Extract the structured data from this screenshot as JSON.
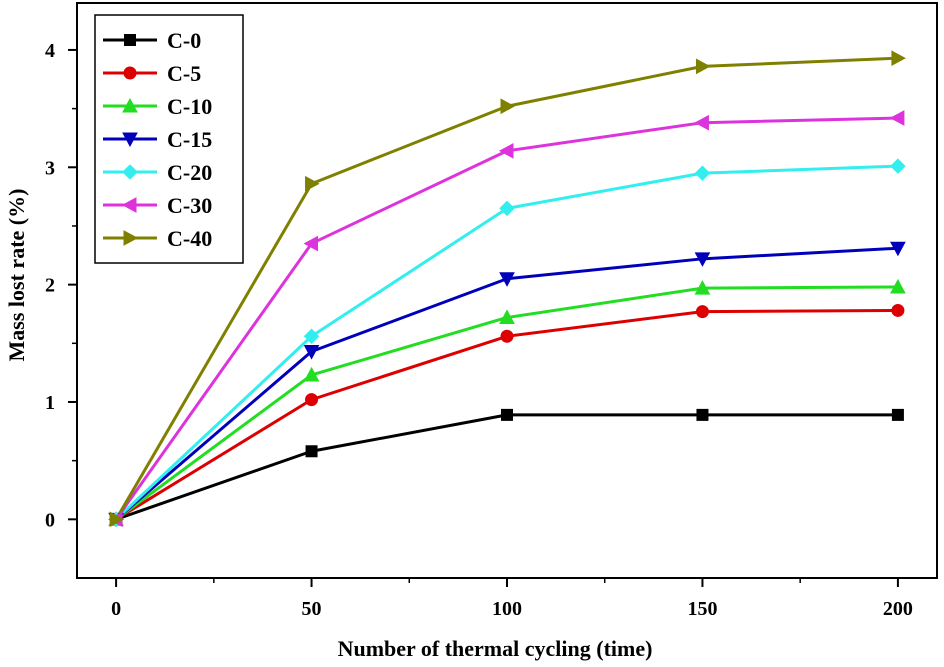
{
  "chart_data": {
    "type": "line",
    "title": "",
    "xlabel": "Number of thermal cycling (time)",
    "ylabel": "Mass lost rate (%)",
    "x": [
      0,
      50,
      100,
      150,
      200
    ],
    "xlim": [
      -10,
      210
    ],
    "ylim": [
      -0.5,
      4.4
    ],
    "xticks": [
      0,
      50,
      100,
      150,
      200
    ],
    "yticks": [
      0,
      1,
      2,
      3,
      4
    ],
    "grid": false,
    "legend_position": "top-left",
    "series": [
      {
        "name": "C-0",
        "color": "#000000",
        "marker": "square",
        "values": [
          0,
          0.58,
          0.89,
          0.89,
          0.89
        ]
      },
      {
        "name": "C-5",
        "color": "#dd0000",
        "marker": "circle",
        "values": [
          0,
          1.02,
          1.56,
          1.77,
          1.78
        ]
      },
      {
        "name": "C-10",
        "color": "#22dd22",
        "marker": "triangle-up",
        "values": [
          0,
          1.23,
          1.72,
          1.97,
          1.98
        ]
      },
      {
        "name": "C-15",
        "color": "#0000bb",
        "marker": "triangle-down",
        "values": [
          0,
          1.43,
          2.05,
          2.22,
          2.31
        ]
      },
      {
        "name": "C-20",
        "color": "#33eeee",
        "marker": "diamond",
        "values": [
          0,
          1.56,
          2.65,
          2.95,
          3.01
        ]
      },
      {
        "name": "C-30",
        "color": "#dd33dd",
        "marker": "triangle-left",
        "values": [
          0,
          2.35,
          3.14,
          3.38,
          3.42
        ]
      },
      {
        "name": "C-40",
        "color": "#808000",
        "marker": "triangle-right",
        "values": [
          0,
          2.86,
          3.52,
          3.86,
          3.93
        ]
      }
    ]
  }
}
